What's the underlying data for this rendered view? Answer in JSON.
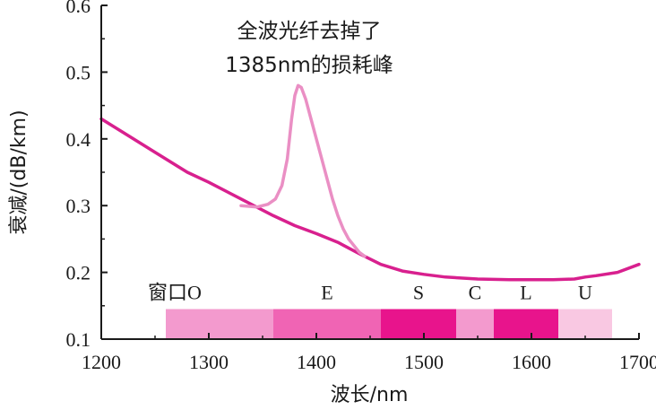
{
  "chart_data": {
    "type": "line",
    "title": "",
    "xlabel": "波长/nm",
    "ylabel": "衰减/(dB/km)",
    "xlim": [
      1200,
      1700
    ],
    "ylim": [
      0.1,
      0.6
    ],
    "xticks": [
      1200,
      1300,
      1400,
      1500,
      1600,
      1700
    ],
    "yticks": [
      0.1,
      0.2,
      0.3,
      0.4,
      0.5,
      0.6
    ],
    "grid": false,
    "annotation": [
      "全波光纤去掉了",
      "1385nm的损耗峰"
    ],
    "series": [
      {
        "color": "#d8208e",
        "x": [
          1200,
          1220,
          1250,
          1280,
          1300,
          1330,
          1360,
          1380,
          1400,
          1420,
          1440,
          1460,
          1480,
          1500,
          1520,
          1550,
          1580,
          1600,
          1620,
          1640,
          1650,
          1660,
          1680,
          1700
        ],
        "y": [
          0.43,
          0.41,
          0.38,
          0.35,
          0.335,
          0.31,
          0.285,
          0.27,
          0.258,
          0.245,
          0.228,
          0.212,
          0.202,
          0.197,
          0.193,
          0.19,
          0.189,
          0.189,
          0.189,
          0.19,
          0.193,
          0.195,
          0.2,
          0.212
        ]
      },
      {
        "color": "#ea8fc4",
        "x": [
          1330,
          1345,
          1355,
          1362,
          1368,
          1373,
          1377,
          1380,
          1383,
          1386,
          1390,
          1395,
          1400,
          1405,
          1410,
          1415,
          1420,
          1425,
          1430,
          1435,
          1440,
          1445
        ],
        "y": [
          0.3,
          0.298,
          0.302,
          0.31,
          0.33,
          0.37,
          0.43,
          0.465,
          0.48,
          0.477,
          0.46,
          0.43,
          0.4,
          0.37,
          0.34,
          0.31,
          0.285,
          0.265,
          0.25,
          0.24,
          0.23,
          0.224
        ]
      }
    ],
    "bands": [
      {
        "label": "窗口O",
        "start": 1260,
        "end": 1360,
        "color": "#f39ace"
      },
      {
        "label": "E",
        "start": 1360,
        "end": 1460,
        "color": "#f064b4"
      },
      {
        "label": "S",
        "start": 1460,
        "end": 1530,
        "color": "#e8148c"
      },
      {
        "label": "C",
        "start": 1530,
        "end": 1565,
        "color": "#f39ace"
      },
      {
        "label": "L",
        "start": 1565,
        "end": 1625,
        "color": "#e8148c"
      },
      {
        "label": "U",
        "start": 1625,
        "end": 1675,
        "color": "#f9c8e2"
      }
    ]
  }
}
